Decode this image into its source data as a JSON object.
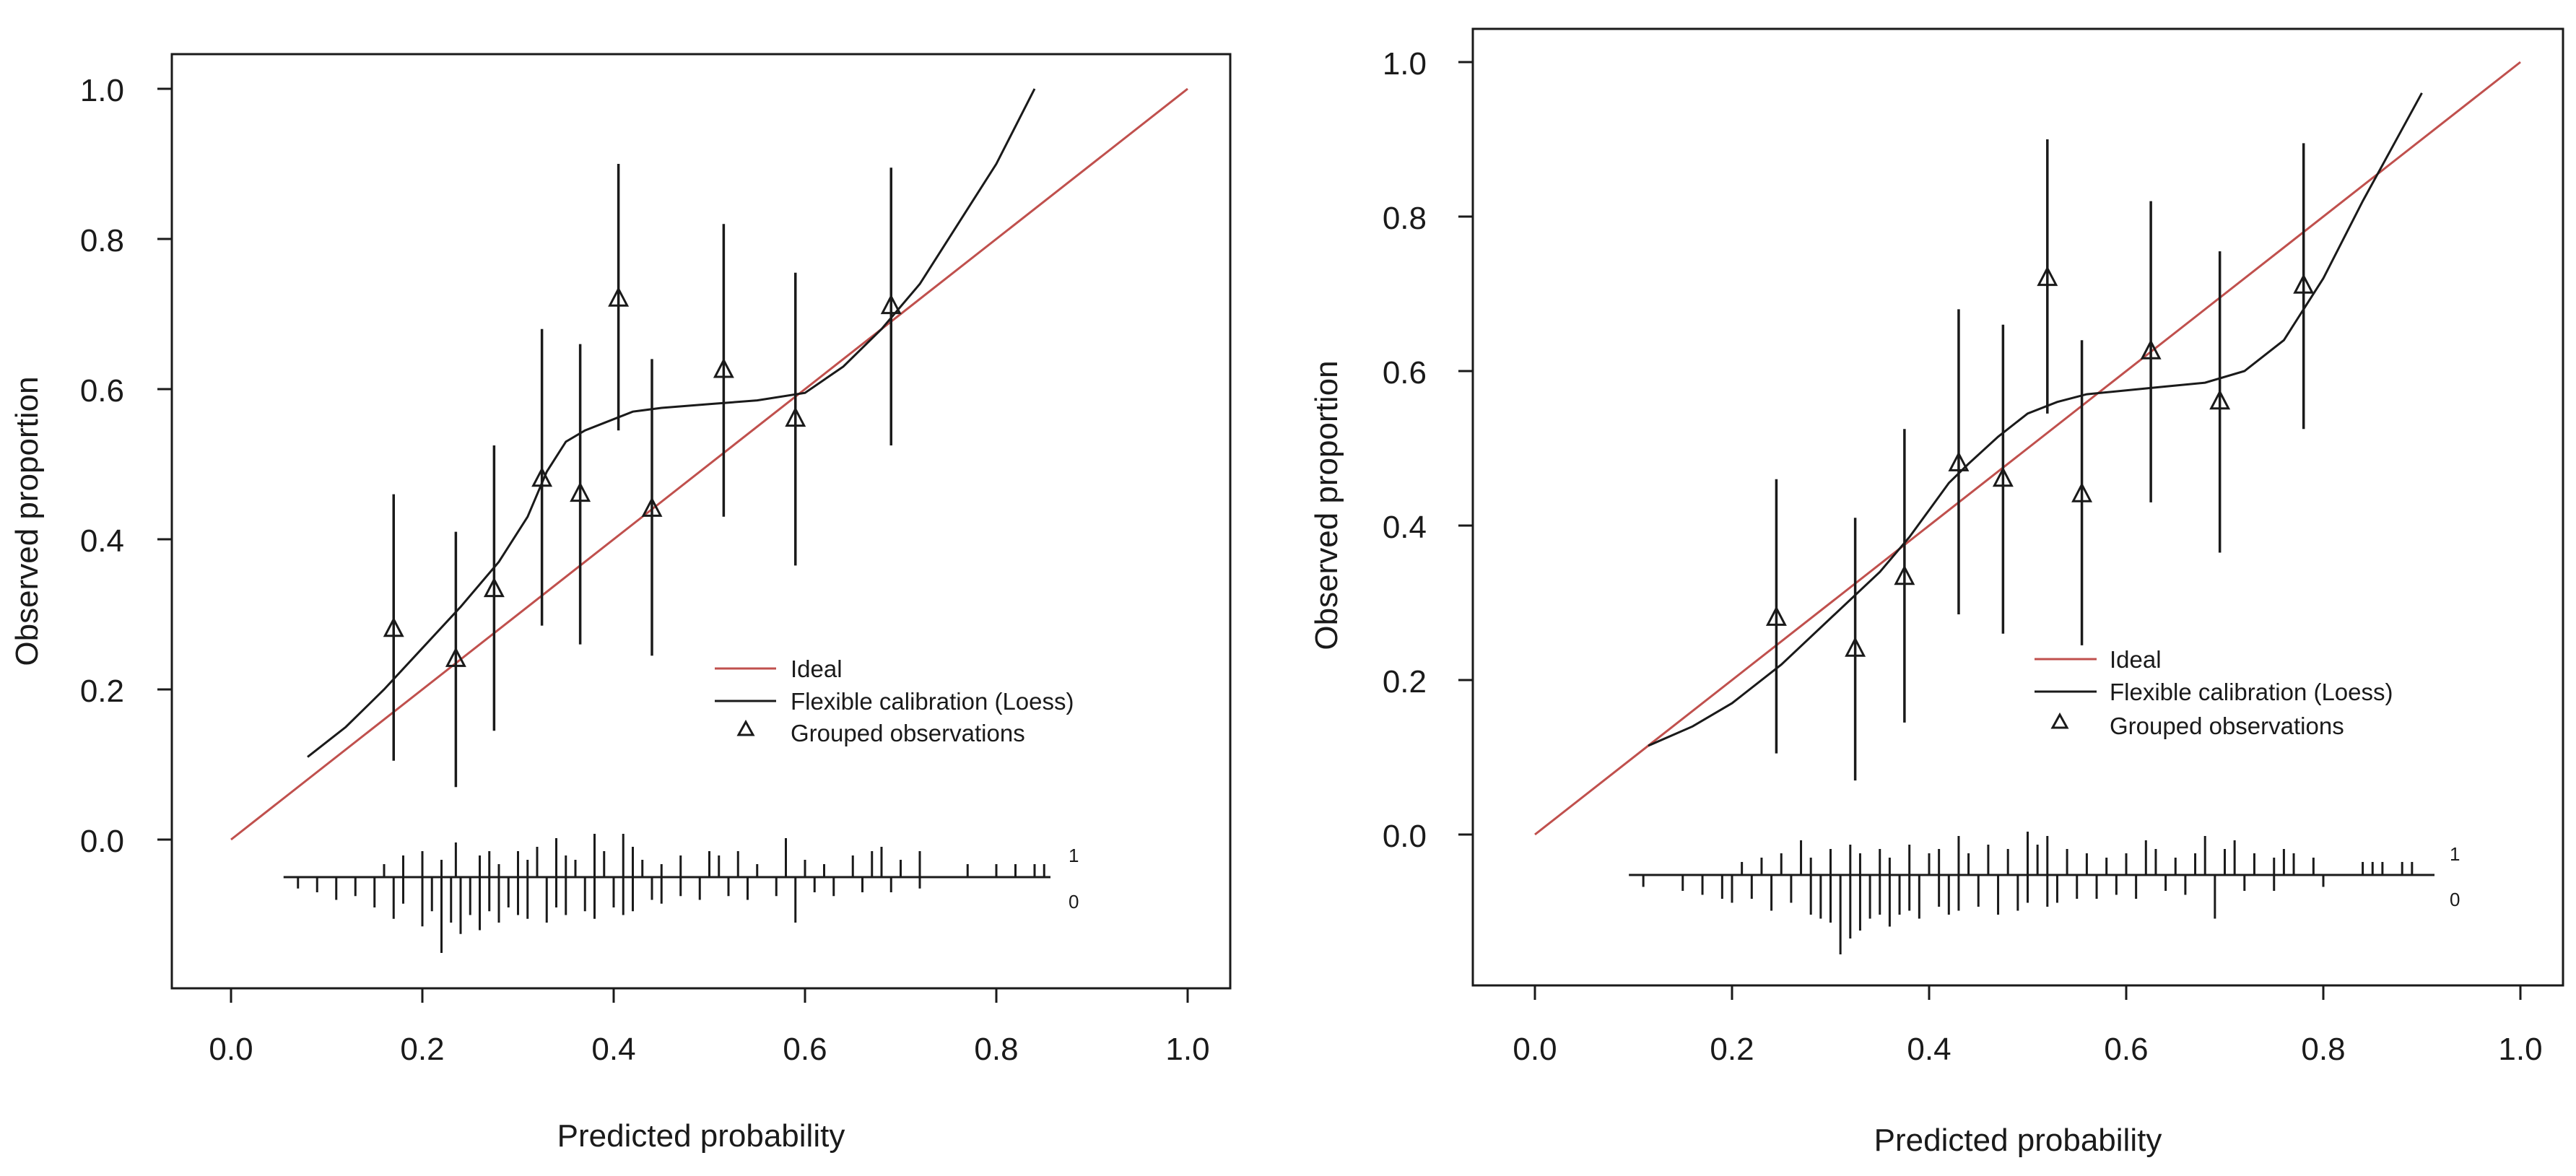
{
  "colors": {
    "ideal": "#c0504d",
    "ink": "#1a1a1a"
  },
  "chart_data": [
    {
      "type": "scatter",
      "title": "",
      "xlabel": "Predicted probability",
      "ylabel": "Observed proportion",
      "xlim": [
        0.0,
        1.0
      ],
      "ylim": [
        0.0,
        1.0
      ],
      "xticks": [
        "0.0",
        "0.2",
        "0.4",
        "0.6",
        "0.8",
        "1.0"
      ],
      "yticks": [
        "0.0",
        "0.2",
        "0.4",
        "0.6",
        "0.8",
        "1.0"
      ],
      "legend": {
        "position": "bottom-right",
        "entries": [
          "Ideal",
          "Flexible calibration (Loess)",
          "Grouped observations"
        ]
      },
      "ideal": {
        "x": [
          0.0,
          1.0
        ],
        "y": [
          0.0,
          1.0
        ]
      },
      "loess": {
        "x": [
          0.08,
          0.12,
          0.16,
          0.2,
          0.24,
          0.28,
          0.31,
          0.33,
          0.35,
          0.37,
          0.39,
          0.42,
          0.45,
          0.5,
          0.55,
          0.6,
          0.64,
          0.68,
          0.72,
          0.76,
          0.8,
          0.84
        ],
        "y": [
          0.11,
          0.15,
          0.2,
          0.255,
          0.31,
          0.37,
          0.43,
          0.49,
          0.53,
          0.545,
          0.555,
          0.57,
          0.575,
          0.58,
          0.585,
          0.595,
          0.63,
          0.68,
          0.74,
          0.82,
          0.9,
          1.0
        ]
      },
      "groups": {
        "x": [
          0.17,
          0.235,
          0.275,
          0.325,
          0.365,
          0.405,
          0.44,
          0.515,
          0.59,
          0.69
        ],
        "y": [
          0.28,
          0.24,
          0.333,
          0.48,
          0.46,
          0.72,
          0.44,
          0.625,
          0.56,
          0.71
        ],
        "lo": [
          0.105,
          0.07,
          0.145,
          0.285,
          0.26,
          0.545,
          0.245,
          0.43,
          0.365,
          0.525
        ],
        "hi": [
          0.46,
          0.41,
          0.525,
          0.68,
          0.66,
          0.9,
          0.64,
          0.82,
          0.755,
          0.895
        ]
      },
      "rug": {
        "label_1": "1",
        "label_0": "0",
        "positives": [
          0.16,
          0.18,
          0.2,
          0.22,
          0.235,
          0.26,
          0.27,
          0.28,
          0.3,
          0.31,
          0.32,
          0.34,
          0.35,
          0.36,
          0.38,
          0.39,
          0.41,
          0.42,
          0.43,
          0.45,
          0.47,
          0.5,
          0.51,
          0.53,
          0.55,
          0.58,
          0.6,
          0.62,
          0.65,
          0.67,
          0.68,
          0.7,
          0.72,
          0.77,
          0.8,
          0.82,
          0.84,
          0.85
        ],
        "positives_height": [
          0.3,
          0.5,
          0.6,
          0.4,
          0.8,
          0.5,
          0.6,
          0.3,
          0.6,
          0.4,
          0.7,
          0.9,
          0.5,
          0.4,
          1.0,
          0.6,
          1.0,
          0.7,
          0.4,
          0.3,
          0.5,
          0.6,
          0.5,
          0.6,
          0.3,
          0.9,
          0.4,
          0.3,
          0.5,
          0.6,
          0.7,
          0.4,
          0.6,
          0.3,
          0.3,
          0.3,
          0.3,
          0.3
        ],
        "negatives": [
          0.07,
          0.09,
          0.11,
          0.13,
          0.15,
          0.17,
          0.18,
          0.2,
          0.21,
          0.22,
          0.23,
          0.24,
          0.25,
          0.26,
          0.27,
          0.28,
          0.29,
          0.3,
          0.31,
          0.33,
          0.34,
          0.35,
          0.37,
          0.38,
          0.4,
          0.41,
          0.42,
          0.44,
          0.45,
          0.47,
          0.49,
          0.52,
          0.54,
          0.57,
          0.59,
          0.61,
          0.63,
          0.66,
          0.69,
          0.72
        ],
        "negatives_height": [
          0.15,
          0.2,
          0.3,
          0.25,
          0.4,
          0.55,
          0.35,
          0.65,
          0.45,
          1.0,
          0.6,
          0.75,
          0.5,
          0.7,
          0.45,
          0.6,
          0.4,
          0.5,
          0.55,
          0.6,
          0.4,
          0.5,
          0.45,
          0.55,
          0.4,
          0.5,
          0.45,
          0.3,
          0.35,
          0.25,
          0.3,
          0.25,
          0.3,
          0.25,
          0.6,
          0.2,
          0.25,
          0.2,
          0.2,
          0.15
        ]
      }
    },
    {
      "type": "scatter",
      "title": "",
      "xlabel": "Predicted probability",
      "ylabel": "Observed proportion",
      "xlim": [
        0.0,
        1.0
      ],
      "ylim": [
        0.0,
        1.0
      ],
      "xticks": [
        "0.0",
        "0.2",
        "0.4",
        "0.6",
        "0.8",
        "1.0"
      ],
      "yticks": [
        "0.0",
        "0.2",
        "0.4",
        "0.6",
        "0.8",
        "1.0"
      ],
      "legend": {
        "position": "bottom-right",
        "entries": [
          "Ideal",
          "Flexible calibration (Loess)",
          "Grouped observations"
        ]
      },
      "ideal": {
        "x": [
          0.0,
          1.0
        ],
        "y": [
          0.0,
          1.0
        ]
      },
      "loess": {
        "x": [
          0.115,
          0.16,
          0.2,
          0.25,
          0.3,
          0.35,
          0.38,
          0.4,
          0.42,
          0.44,
          0.47,
          0.5,
          0.53,
          0.56,
          0.6,
          0.64,
          0.68,
          0.72,
          0.76,
          0.8,
          0.84,
          0.87,
          0.9
        ],
        "y": [
          0.115,
          0.14,
          0.17,
          0.22,
          0.28,
          0.34,
          0.385,
          0.42,
          0.455,
          0.48,
          0.515,
          0.545,
          0.56,
          0.57,
          0.575,
          0.58,
          0.585,
          0.6,
          0.64,
          0.72,
          0.82,
          0.89,
          0.96
        ]
      },
      "groups": {
        "x": [
          0.245,
          0.325,
          0.375,
          0.43,
          0.475,
          0.52,
          0.555,
          0.625,
          0.695,
          0.78
        ],
        "y": [
          0.28,
          0.24,
          0.333,
          0.48,
          0.46,
          0.72,
          0.44,
          0.625,
          0.56,
          0.71
        ],
        "lo": [
          0.105,
          0.07,
          0.145,
          0.285,
          0.26,
          0.545,
          0.245,
          0.43,
          0.365,
          0.525
        ],
        "hi": [
          0.46,
          0.41,
          0.525,
          0.68,
          0.66,
          0.9,
          0.64,
          0.82,
          0.755,
          0.895
        ]
      },
      "rug": {
        "label_1": "1",
        "label_0": "0",
        "positives": [
          0.21,
          0.23,
          0.25,
          0.27,
          0.28,
          0.3,
          0.32,
          0.33,
          0.35,
          0.36,
          0.38,
          0.4,
          0.41,
          0.43,
          0.44,
          0.46,
          0.48,
          0.5,
          0.51,
          0.52,
          0.54,
          0.56,
          0.58,
          0.6,
          0.62,
          0.63,
          0.65,
          0.67,
          0.68,
          0.7,
          0.71,
          0.73,
          0.75,
          0.76,
          0.77,
          0.79,
          0.84,
          0.85,
          0.86,
          0.88,
          0.89
        ],
        "positives_height": [
          0.3,
          0.4,
          0.5,
          0.8,
          0.4,
          0.6,
          0.7,
          0.5,
          0.6,
          0.4,
          0.7,
          0.5,
          0.6,
          0.9,
          0.5,
          0.7,
          0.6,
          1.0,
          0.7,
          0.9,
          0.6,
          0.5,
          0.4,
          0.5,
          0.8,
          0.6,
          0.4,
          0.5,
          0.9,
          0.6,
          0.8,
          0.5,
          0.4,
          0.6,
          0.5,
          0.4,
          0.3,
          0.3,
          0.3,
          0.3,
          0.3
        ],
        "negatives": [
          0.11,
          0.15,
          0.17,
          0.19,
          0.2,
          0.22,
          0.24,
          0.26,
          0.28,
          0.29,
          0.3,
          0.31,
          0.32,
          0.33,
          0.34,
          0.35,
          0.36,
          0.37,
          0.38,
          0.39,
          0.41,
          0.42,
          0.43,
          0.45,
          0.47,
          0.49,
          0.5,
          0.52,
          0.53,
          0.55,
          0.57,
          0.59,
          0.61,
          0.64,
          0.66,
          0.69,
          0.72,
          0.75,
          0.8
        ],
        "negatives_height": [
          0.15,
          0.2,
          0.25,
          0.3,
          0.35,
          0.3,
          0.45,
          0.35,
          0.5,
          0.55,
          0.6,
          1.0,
          0.8,
          0.7,
          0.55,
          0.5,
          0.65,
          0.5,
          0.45,
          0.55,
          0.4,
          0.5,
          0.45,
          0.4,
          0.5,
          0.45,
          0.35,
          0.4,
          0.35,
          0.3,
          0.3,
          0.25,
          0.3,
          0.2,
          0.25,
          0.55,
          0.2,
          0.2,
          0.15
        ]
      }
    }
  ]
}
